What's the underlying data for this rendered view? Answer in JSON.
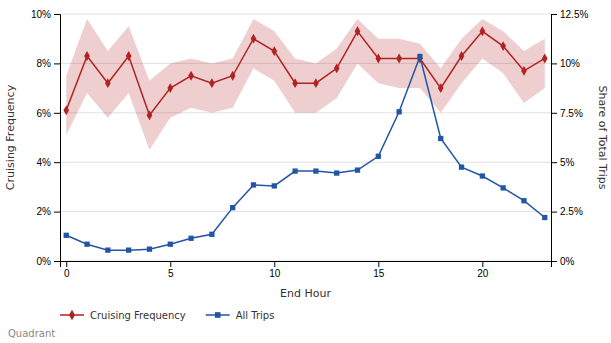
{
  "chart_data": {
    "type": "line",
    "xlabel": "End Hour",
    "ylabel": "Cruising Frequency",
    "y2label": "Share of Total Trips",
    "footer": "Quadrant",
    "x": [
      0,
      1,
      2,
      3,
      4,
      5,
      6,
      7,
      8,
      9,
      10,
      11,
      12,
      13,
      14,
      15,
      16,
      17,
      18,
      19,
      20,
      21,
      22,
      23
    ],
    "xlim": [
      -0.3,
      23.3
    ],
    "xticks": [
      0,
      5,
      10,
      15,
      20
    ],
    "ylim": [
      0,
      0.1
    ],
    "yticks": [
      {
        "value": 0.0,
        "label": "0%"
      },
      {
        "value": 0.02,
        "label": "2%"
      },
      {
        "value": 0.04,
        "label": "4%"
      },
      {
        "value": 0.06,
        "label": "6%"
      },
      {
        "value": 0.08,
        "label": "8%"
      },
      {
        "value": 0.1,
        "label": "10%"
      }
    ],
    "y2lim": [
      0,
      0.125
    ],
    "y2ticks": [
      {
        "value": 0.0,
        "label": "0%"
      },
      {
        "value": 0.025,
        "label": "2.5%"
      },
      {
        "value": 0.05,
        "label": "5%"
      },
      {
        "value": 0.075,
        "label": "7.5%"
      },
      {
        "value": 0.1,
        "label": "10%"
      },
      {
        "value": 0.125,
        "label": "12.5%"
      }
    ],
    "grid": true,
    "legend": "bottom",
    "series": [
      {
        "name": "Cruising Frequency",
        "color": "#b22222",
        "marker": "diamond",
        "axis": "y",
        "values": [
          0.061,
          0.083,
          0.072,
          0.083,
          0.059,
          0.07,
          0.075,
          0.072,
          0.075,
          0.09,
          0.085,
          0.072,
          0.072,
          0.078,
          0.093,
          0.082,
          0.082,
          0.082,
          0.07,
          0.083,
          0.093,
          0.087,
          0.077,
          0.082
        ],
        "upper": [
          0.075,
          0.098,
          0.085,
          0.095,
          0.073,
          0.08,
          0.082,
          0.08,
          0.082,
          0.098,
          0.093,
          0.082,
          0.08,
          0.086,
          0.098,
          0.09,
          0.09,
          0.088,
          0.078,
          0.09,
          0.098,
          0.093,
          0.085,
          0.09
        ],
        "lower": [
          0.051,
          0.068,
          0.058,
          0.068,
          0.045,
          0.058,
          0.062,
          0.06,
          0.062,
          0.078,
          0.073,
          0.06,
          0.06,
          0.066,
          0.08,
          0.072,
          0.07,
          0.07,
          0.06,
          0.072,
          0.082,
          0.076,
          0.064,
          0.07
        ]
      },
      {
        "name": "All Trips",
        "color": "#2255a4",
        "marker": "square",
        "axis": "y2",
        "values": [
          0.013,
          0.0085,
          0.0055,
          0.0055,
          0.006,
          0.0085,
          0.0115,
          0.0135,
          0.027,
          0.0385,
          0.038,
          0.0455,
          0.0455,
          0.0445,
          0.046,
          0.053,
          0.0755,
          0.1035,
          0.062,
          0.0475,
          0.043,
          0.037,
          0.0305,
          0.022
        ]
      }
    ]
  }
}
